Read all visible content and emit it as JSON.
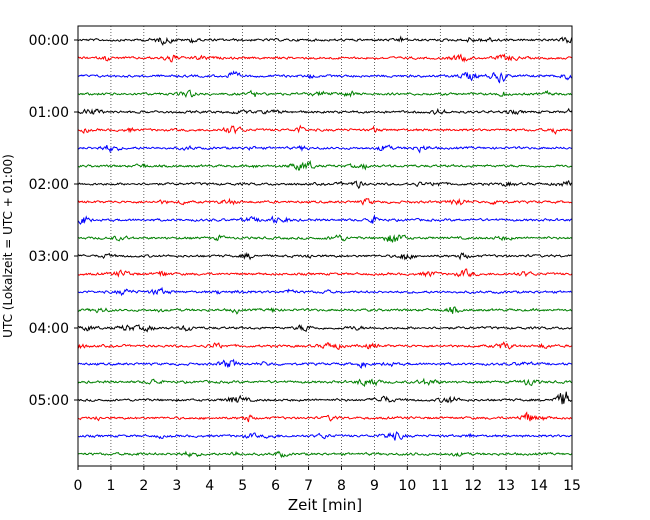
{
  "chart_data": {
    "type": "line",
    "title": "",
    "xlabel": "Zeit  [min]",
    "ylabel": "UTC (Lokalzeit = UTC + 01:00)",
    "xlim": [
      0,
      15
    ],
    "x_ticks": [
      "0",
      "1",
      "2",
      "3",
      "4",
      "5",
      "6",
      "7",
      "8",
      "9",
      "10",
      "11",
      "12",
      "13",
      "14",
      "15"
    ],
    "y_tick_labels": [
      "00:00",
      "01:00",
      "02:00",
      "03:00",
      "04:00",
      "05:00"
    ],
    "rows_per_hour": 4,
    "row_count": 24,
    "minutes_per_row": 15,
    "series_colors": [
      "#000000",
      "#ff0000",
      "#0000ff",
      "#008000"
    ],
    "grid": "x-dotted",
    "legend": "none"
  }
}
